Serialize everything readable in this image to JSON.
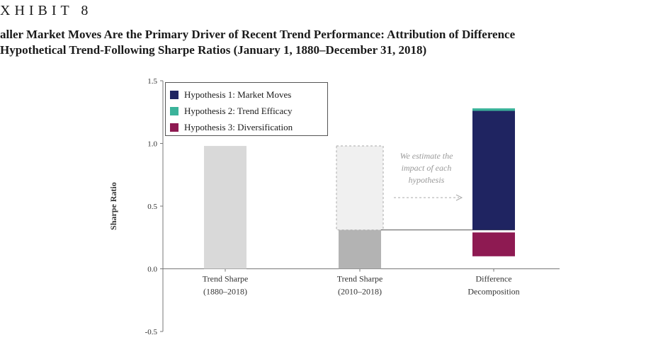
{
  "exhibit_label": "XHIBIT 8",
  "title_line1": "aller Market Moves Are the Primary Driver of Recent Trend Performance: Attribution of Difference",
  "title_line2": "Hypothetical Trend-Following Sharpe Ratios (January 1, 1880–December 31, 2018)",
  "annotation": [
    "We estimate the",
    "impact of each",
    "hypothesis"
  ],
  "colors": {
    "trend_full": "#d9d9d9",
    "trend_recent": "#b3b3b3",
    "ghost_bar": "#f0f0f0",
    "market_moves": "#1f2461",
    "trend_efficacy": "#3bb39a",
    "diversification": "#8e1a52",
    "axis": "#777777"
  },
  "chart_data": {
    "type": "bar",
    "title": "",
    "ylabel": "Sharpe Ratio",
    "xlabel": "",
    "ylim": [
      -0.5,
      1.5
    ],
    "yticks": [
      1.5,
      1.0,
      0.5,
      0.0,
      -0.5
    ],
    "ytick_labels": [
      "1.5",
      "1.0",
      "0.5",
      "0.0",
      "-0.5"
    ],
    "grid": false,
    "legend_position": "top-left",
    "categories": [
      [
        "Trend Sharpe",
        "(1880–2018)"
      ],
      [
        "Trend Sharpe",
        "(2010–2018)"
      ],
      [
        "Difference",
        "Decomposition"
      ]
    ],
    "bars": [
      {
        "category": 0,
        "value": 0.98
      },
      {
        "category": 1,
        "value": 0.31,
        "ghost_top": 0.98
      }
    ],
    "decomposition": {
      "category": 2,
      "base": 0.31,
      "segments": [
        {
          "name": "Hypothesis 1: Market Moves",
          "from": 0.31,
          "to": 1.26
        },
        {
          "name": "Hypothesis 2: Trend Efficacy",
          "from": 1.26,
          "to": 1.28
        },
        {
          "name": "Hypothesis 3: Diversification",
          "from": 0.1,
          "to": 0.29
        }
      ]
    },
    "legend": [
      "Hypothesis 1: Market Moves",
      "Hypothesis 2: Trend Efficacy",
      "Hypothesis 3: Diversification"
    ]
  }
}
